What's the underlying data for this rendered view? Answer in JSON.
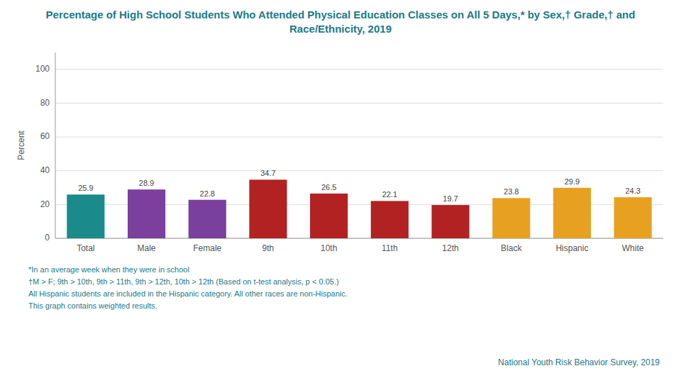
{
  "chart_data": {
    "type": "bar",
    "title": "Percentage of High School Students Who Attended Physical Education Classes on All 5 Days,* by Sex,† Grade,† and Race/Ethnicity, 2019",
    "categories": [
      "Total",
      "Male",
      "Female",
      "9th",
      "10th",
      "11th",
      "12th",
      "Black",
      "Hispanic",
      "White"
    ],
    "values": [
      25.9,
      28.9,
      22.8,
      34.7,
      26.5,
      22.1,
      19.7,
      23.8,
      29.9,
      24.3
    ],
    "colors": [
      "#1a8a8a",
      "#7b3f9e",
      "#7b3f9e",
      "#b22222",
      "#b22222",
      "#b22222",
      "#b22222",
      "#e8a020",
      "#e8a020",
      "#e8a020"
    ],
    "ylabel": "Percent",
    "ylim": [
      0,
      110
    ],
    "yticks": [
      0,
      20,
      40,
      60,
      80,
      100
    ],
    "grid": true,
    "data_labels": true,
    "footnotes": [
      "*In an average week when they were in school",
      "†M > F; 9th > 10th, 9th > 11th, 9th > 12th, 10th > 12th (Based on t-test analysis, p < 0.05.)",
      "All Hispanic students are included in the Hispanic category.  All other races are non-Hispanic.",
      "This graph contains weighted results."
    ],
    "source": "National Youth Risk Behavior Survey, 2019"
  }
}
